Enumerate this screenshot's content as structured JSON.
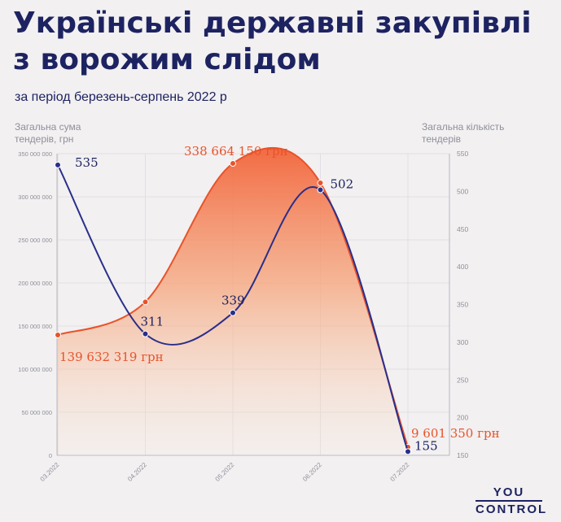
{
  "title": "Українські державні закупівлі з ворожим слідом",
  "subtitle": "за період березень-серпень 2022 р",
  "logo": {
    "line1": "YOU",
    "line2": "CONTROL"
  },
  "colors": {
    "amount": "#e8532a",
    "count": "#2a2f8a",
    "text_dark": "#1d2361",
    "axis_text": "#8f8f99"
  },
  "chart_data": {
    "type": "line",
    "categories": [
      "03.2022",
      "04.2022",
      "05.2022",
      "06.2022",
      "07.2022"
    ],
    "y_left": {
      "label": "Загальна сума тендерів, грн",
      "range": [
        0,
        350000000
      ],
      "ticks": [
        "0",
        "50 000 000",
        "100 000 000",
        "150 000 000",
        "200 000 000",
        "250 000 000",
        "300 000 000",
        "350 000 000"
      ]
    },
    "y_right": {
      "label": "Загальна кількість тендерів",
      "range": [
        150,
        550
      ],
      "ticks": [
        "150",
        "200",
        "250",
        "300",
        "350",
        "400",
        "450",
        "500",
        "550"
      ]
    },
    "series": [
      {
        "values": [
          139632319,
          178000000,
          338664150,
          316000000,
          9601350
        ],
        "labels": [
          "139 632 319 грн",
          "",
          "338 664 150 грн",
          "",
          "9 601 350 грн"
        ],
        "style": "area",
        "axis": "left"
      },
      {
        "values": [
          535,
          311,
          339,
          502,
          155
        ],
        "labels": [
          "535",
          "311",
          "339",
          "502",
          "155"
        ],
        "style": "line",
        "axis": "right"
      }
    ],
    "grid": true
  }
}
